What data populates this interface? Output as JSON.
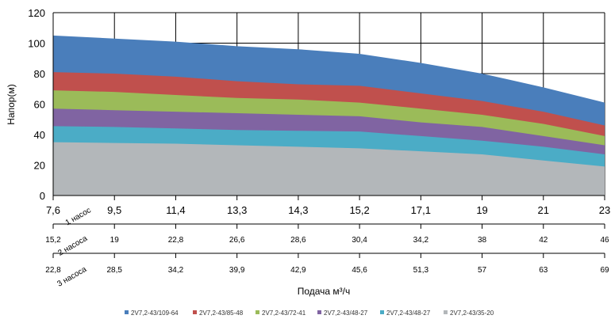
{
  "chart_data": {
    "type": "area",
    "ylabel": "Напор(м)",
    "xlabel": "Подача м³/ч",
    "ylim": [
      0,
      120
    ],
    "yticks": [
      "0",
      "20",
      "40",
      "60",
      "80",
      "100",
      "120"
    ],
    "x": [
      "7,6",
      "9,5",
      "11,4",
      "13,3",
      "14,3",
      "15,2",
      "17,1",
      "19",
      "21",
      "23"
    ],
    "grid": true,
    "legend_position": "bottom",
    "series": [
      {
        "name": "2V7,2-43/109-64",
        "color": "#4A7EBB",
        "values": [
          105,
          103,
          101,
          98,
          96,
          93,
          87,
          80,
          71,
          61
        ]
      },
      {
        "name": "2V7,2-43/85-48",
        "color": "#C0504D",
        "values": [
          81,
          80,
          78,
          75,
          73,
          72,
          67,
          62,
          55,
          46
        ]
      },
      {
        "name": "2V7,2-43/72-41",
        "color": "#9BBB59",
        "values": [
          69,
          68,
          66,
          64,
          63,
          61,
          57,
          53,
          47,
          39
        ]
      },
      {
        "name": "2V7,2-43/48-27",
        "color": "#8064A2",
        "values": [
          57,
          56,
          55,
          54,
          53,
          52,
          48,
          45,
          39,
          33
        ]
      },
      {
        "name": "2V7,2-43/48-27",
        "color": "#4BACC6",
        "values": [
          45.5,
          45,
          44,
          43,
          42.5,
          42,
          39,
          36,
          32,
          27
        ]
      },
      {
        "name": "2V7,2-43/35-20",
        "color": "#B3B7BA",
        "values": [
          35,
          34.5,
          34,
          33,
          32,
          31,
          29,
          27,
          23,
          19
        ]
      }
    ],
    "secondary_axes": [
      {
        "label": "1 насос",
        "ticks": [
          "7,6",
          "9,5",
          "11,4",
          "13,3",
          "14,3",
          "15,2",
          "17,1",
          "19",
          "21",
          "23"
        ]
      },
      {
        "label": "2 насоса",
        "ticks": [
          "15,2",
          "19",
          "22,8",
          "26,6",
          "28,6",
          "30,4",
          "34,2",
          "38",
          "42",
          "46"
        ]
      },
      {
        "label": "3 насоса",
        "ticks": [
          "22,8",
          "28,5",
          "34,2",
          "39,9",
          "42,9",
          "45,6",
          "51,3",
          "57",
          "63",
          "69"
        ]
      }
    ]
  }
}
